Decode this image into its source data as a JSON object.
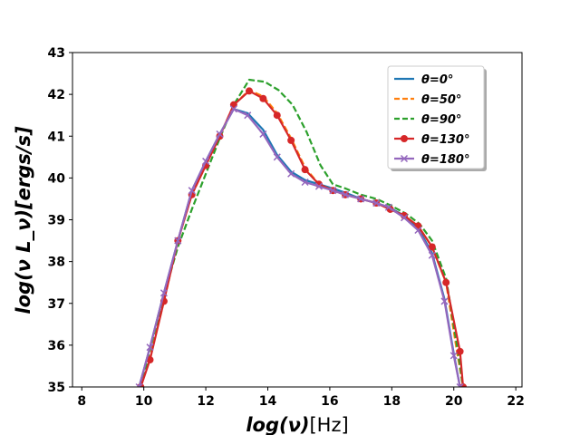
{
  "chart_data": {
    "type": "line",
    "xlabel_main": "log(ν)",
    "xlabel_unit": "[Hz]",
    "ylabel": "log(ν L_ν)[ergs/s]",
    "xlim": [
      7.7,
      22.2
    ],
    "ylim": [
      35,
      43
    ],
    "x_ticks": [
      8,
      10,
      12,
      14,
      16,
      18,
      20,
      22
    ],
    "y_ticks": [
      35,
      36,
      37,
      38,
      39,
      40,
      41,
      42,
      43
    ],
    "x_tick_labels": [
      "8",
      "10",
      "12",
      "14",
      "16",
      "18",
      "20",
      "22"
    ],
    "y_tick_labels": [
      "35",
      "36",
      "37",
      "38",
      "39",
      "40",
      "41",
      "42",
      "43"
    ],
    "legend_position": "top-right",
    "series": [
      {
        "name": "θ=0°",
        "color": "#1f77b4",
        "style": "solid",
        "marker": "none",
        "x": [
          9.85,
          10.2,
          10.65,
          11.1,
          11.55,
          12.0,
          12.45,
          12.9,
          13.35,
          13.85,
          14.3,
          14.75,
          15.2,
          15.65,
          16.1,
          16.5,
          17.0,
          17.5,
          17.9,
          18.4,
          18.85,
          19.3,
          19.7,
          20.0,
          20.2
        ],
        "y": [
          35.0,
          35.95,
          37.25,
          38.5,
          39.7,
          40.4,
          41.05,
          41.65,
          41.55,
          41.15,
          40.55,
          40.15,
          39.95,
          39.85,
          39.75,
          39.65,
          39.5,
          39.4,
          39.3,
          39.1,
          38.8,
          38.2,
          37.1,
          35.8,
          35.0
        ]
      },
      {
        "name": "θ=50°",
        "color": "#ff7f0e",
        "style": "dashed",
        "marker": "none",
        "x": [
          9.9,
          10.2,
          10.65,
          11.1,
          11.55,
          12.0,
          12.45,
          12.9,
          13.4,
          13.85,
          14.3,
          14.75,
          15.2,
          15.65,
          16.1,
          16.5,
          17.0,
          17.5,
          17.95,
          18.4,
          18.85,
          19.3,
          19.75,
          20.1,
          20.3
        ],
        "y": [
          35.0,
          35.7,
          37.05,
          38.5,
          39.6,
          40.3,
          41.0,
          41.75,
          42.1,
          41.95,
          41.55,
          40.95,
          40.25,
          39.85,
          39.7,
          39.6,
          39.5,
          39.4,
          39.25,
          39.1,
          38.85,
          38.35,
          37.5,
          35.85,
          35.0
        ]
      },
      {
        "name": "θ=90°",
        "color": "#2ca02c",
        "style": "dashed",
        "marker": "none",
        "x": [
          9.9,
          10.2,
          10.65,
          11.1,
          11.55,
          12.0,
          12.45,
          12.9,
          13.4,
          13.9,
          14.35,
          14.8,
          15.25,
          15.7,
          16.1,
          16.5,
          17.0,
          17.5,
          17.95,
          18.45,
          18.9,
          19.3,
          19.75,
          20.1,
          20.3
        ],
        "y": [
          35.0,
          35.9,
          37.2,
          38.35,
          39.25,
          40.1,
          40.95,
          41.75,
          42.35,
          42.3,
          42.1,
          41.75,
          41.1,
          40.3,
          39.85,
          39.75,
          39.6,
          39.5,
          39.35,
          39.15,
          38.9,
          38.5,
          37.6,
          36.0,
          35.0
        ]
      },
      {
        "name": "θ=130°",
        "color": "#d62728",
        "style": "solid",
        "marker": "circle",
        "x": [
          9.9,
          10.2,
          10.65,
          11.1,
          11.55,
          12.0,
          12.45,
          12.9,
          13.4,
          13.85,
          14.3,
          14.75,
          15.2,
          15.65,
          16.1,
          16.5,
          17.0,
          17.5,
          17.95,
          18.4,
          18.85,
          19.3,
          19.75,
          20.2,
          20.3
        ],
        "y": [
          35.0,
          35.65,
          37.05,
          38.5,
          39.6,
          40.3,
          41.0,
          41.75,
          42.08,
          41.9,
          41.5,
          40.9,
          40.2,
          39.85,
          39.7,
          39.6,
          39.5,
          39.4,
          39.25,
          39.1,
          38.85,
          38.35,
          37.5,
          35.85,
          35.0
        ]
      },
      {
        "name": "θ=180°",
        "color": "#9467bd",
        "style": "solid",
        "marker": "x",
        "x": [
          9.85,
          10.2,
          10.65,
          11.1,
          11.55,
          12.0,
          12.45,
          12.9,
          13.35,
          13.85,
          14.3,
          14.75,
          15.2,
          15.65,
          16.1,
          16.5,
          17.0,
          17.5,
          17.9,
          18.4,
          18.85,
          19.3,
          19.7,
          20.0,
          20.2
        ],
        "y": [
          35.0,
          35.95,
          37.25,
          38.5,
          39.7,
          40.4,
          41.05,
          41.65,
          41.5,
          41.05,
          40.5,
          40.1,
          39.9,
          39.8,
          39.7,
          39.6,
          39.5,
          39.4,
          39.3,
          39.05,
          38.75,
          38.15,
          37.05,
          35.75,
          35.0
        ]
      }
    ]
  }
}
